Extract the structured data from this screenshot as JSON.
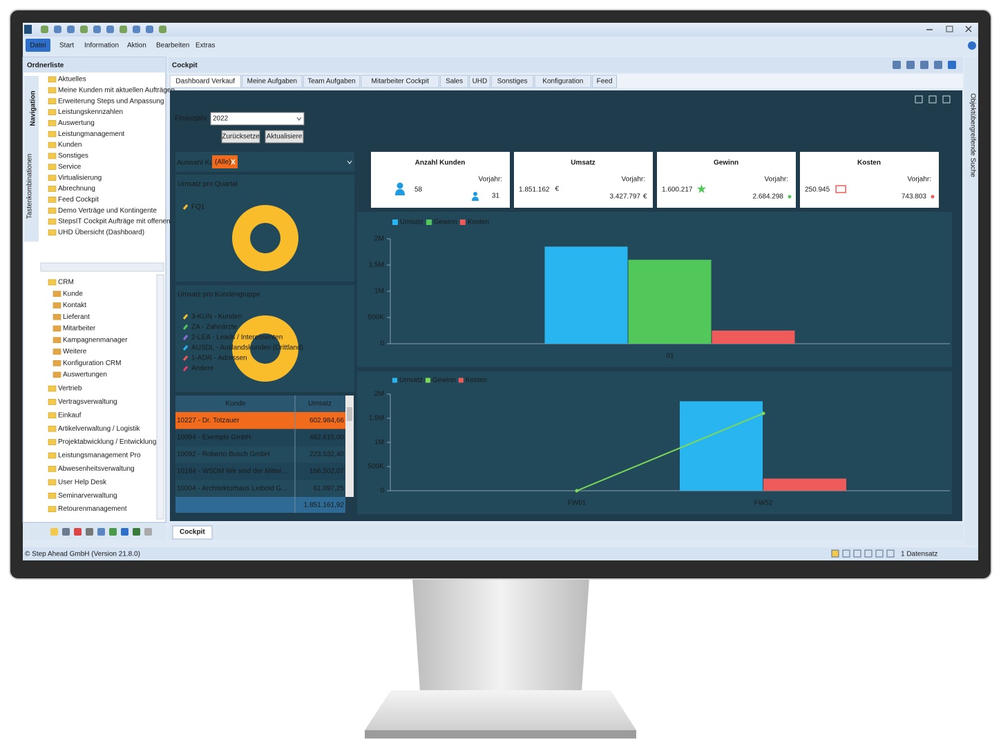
{
  "window": {
    "menu": [
      "Datei",
      "Start",
      "Information",
      "Aktion",
      "Bearbeiten",
      "Extras"
    ],
    "status": "© Step Ahead GmbH (Version 21.8.0)",
    "record_count": "1 Datensatz",
    "bottom_tab": "Cockpit",
    "right_sidebar": "Objektübergreifende Suche"
  },
  "left_panel": {
    "title": "Ordnerliste",
    "vertical_tabs": [
      "Navigation",
      "Tastenkombinationen"
    ],
    "folders": [
      "Aktuelles",
      "Meine Kunden mit aktuellen Aufträgen",
      "Erweiterung Steps und Anpassung",
      "Leistungskennzahlen",
      "Auswertung",
      "Leistungmanagement",
      "Kunden",
      "Sonstiges",
      "Service",
      "Virtualisierung",
      "Abrechnung",
      "Feed Cockpit",
      "Demo Verträge und Kontingente",
      "StepsIT Cockpit Aufträge mit offenen Leis",
      "UHD Übersicht (Dashboard)"
    ],
    "tree": [
      "CRM",
      "Kunde",
      "Kontakt",
      "Lieferant",
      "Mitarbeiter",
      "Kampagnenmanager",
      "Weitere",
      "Konfiguration CRM",
      "Auswertungen",
      "Vertrieb",
      "Vertragsverwaltung",
      "Einkauf",
      "Artikelverwaltung / Logistik",
      "Projektabwicklung / Entwicklung",
      "Leistungsmanagement Pro",
      "Abwesenheitsverwaltung",
      "User Help Desk",
      "Seminarverwaltung",
      "Retourenmanagement"
    ]
  },
  "cockpit": {
    "title": "Cockpit",
    "tabs": [
      "Dashboard Verkauf",
      "Meine Aufgaben",
      "Team Aufgaben",
      "Mitarbeiter Cockpit",
      "Sales",
      "UHD",
      "Sonstiges",
      "Konfiguration",
      "Feed"
    ],
    "filter_label": "Finanzjahr",
    "filter_value": "2022",
    "buttons": [
      "Zurücksetze",
      "Aktualisiere"
    ],
    "customer_label": "Auswahl Kunde:",
    "customer_value": "(Alle)",
    "kpis": [
      {
        "title": "Anzahl Kunden",
        "value": "58",
        "previous_label": "Vorjahr:",
        "previous": "31",
        "color": "#1e9be0"
      },
      {
        "title": "Umsatz",
        "value": "1.851.162",
        "unit": "€",
        "previous_label": "Vorjahr:",
        "previous": "3.427.797",
        "previous_unit": "€",
        "color": "#29b6f0"
      },
      {
        "title": "Gewinn",
        "value": "1.600.217",
        "previous_label": "Vorjahr:",
        "previous": "2.684.298",
        "color": "#52c85a"
      },
      {
        "title": "Kosten",
        "value": "250.945",
        "previous_label": "Vorjahr:",
        "previous": "743.803",
        "color": "#ef5a5a"
      }
    ],
    "table": {
      "columns": [
        "Kunde",
        "Umsatz"
      ],
      "rows": [
        [
          "10227 - Dr. Totzauer",
          "602.984,66"
        ],
        [
          "10094 - Exemplo GmbH",
          "482.615,00"
        ],
        [
          "10092 - Roberto Busch GmbH",
          "223.532,40"
        ],
        [
          "10184 - WSDM Wir sind der Mittel...",
          "166.502,07"
        ],
        [
          "10004 - Architekturhaus Leibold G...",
          "61.097,25"
        ]
      ],
      "total": "1.851.161,92"
    }
  },
  "chart_data": [
    {
      "type": "pie",
      "title": "Umsatz pro Quartal",
      "categories": [
        "FQ1"
      ],
      "values": [
        100
      ],
      "colors": [
        "#f9bd2c"
      ]
    },
    {
      "type": "pie",
      "title": "Umsatz pro Kundengruppe",
      "categories": [
        "3-KUN - Kunden",
        "ZA - Zahnärzte",
        "2-LEA - Leads / Interessenten",
        "AUSDL - Auslandskunden (Drittland)",
        "1-ADR - Adressen",
        "Andere"
      ],
      "values": [
        100,
        0,
        0,
        0,
        0,
        0
      ],
      "colors": [
        "#f9bd2c",
        "#52c85a",
        "#8a6fd8",
        "#29b6f0",
        "#ef5a5a",
        "#e83e6c"
      ]
    },
    {
      "type": "bar",
      "categories": [
        "01"
      ],
      "series": [
        {
          "name": "Umsatz",
          "color": "#29b6f0",
          "values": [
            1851162
          ]
        },
        {
          "name": "Gewinn",
          "color": "#52c85a",
          "values": [
            1600217
          ]
        },
        {
          "name": "Kosten",
          "color": "#ef5a5a",
          "values": [
            250945
          ]
        }
      ],
      "ylim": [
        0,
        2000000
      ],
      "yticks": [
        0,
        {
          "value": 500000,
          "label": "500K"
        },
        {
          "value": 1000000,
          "label": "1M"
        },
        {
          "value": 1500000,
          "label": "1,5M"
        },
        {
          "value": 2000000,
          "label": "2M"
        }
      ],
      "grid": false
    },
    {
      "type": "combo",
      "categories": [
        "FW01",
        "FW52"
      ],
      "series": [
        {
          "name": "Umsatz",
          "color": "#29b6f0",
          "values": [
            0,
            1851162
          ]
        },
        {
          "name": "Gewinn",
          "color": "#7ed957",
          "kind": "line",
          "values": [
            0,
            1600217
          ]
        },
        {
          "name": "Kosten",
          "color": "#ef5a5a",
          "values": [
            0,
            250945
          ]
        }
      ],
      "ylim": [
        0,
        2000000
      ],
      "yticks": [
        0,
        {
          "value": 500000,
          "label": "500K"
        },
        {
          "value": 1000000,
          "label": "1M"
        },
        {
          "value": 1500000,
          "label": "1,5M"
        },
        {
          "value": 2000000,
          "label": "2M"
        }
      ],
      "grid": false
    }
  ]
}
